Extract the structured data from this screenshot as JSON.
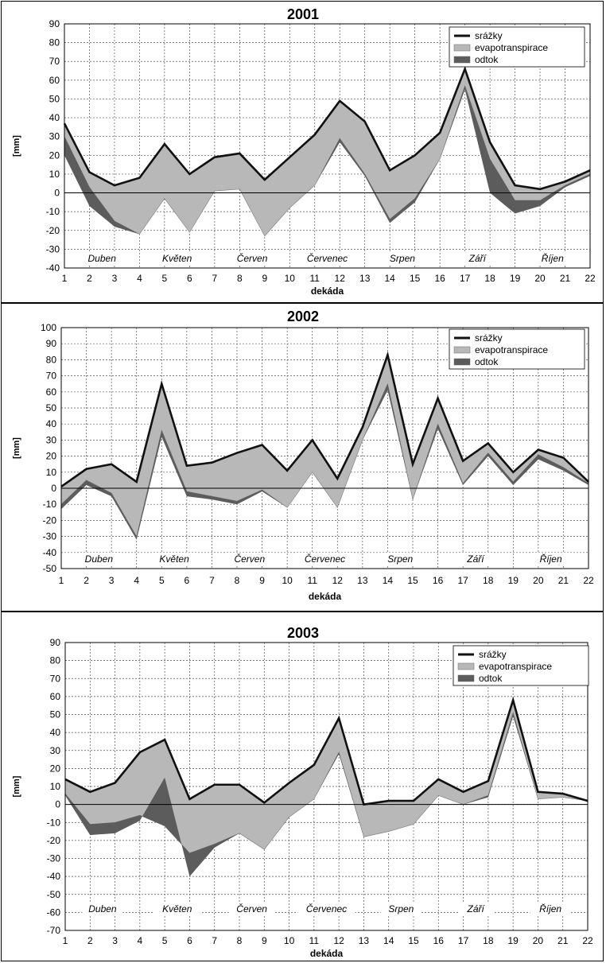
{
  "colors": {
    "srazky": "#111111",
    "evapotranspirace": "#b8b8b8",
    "odtok": "#5c5c5c",
    "grid": "#555555"
  },
  "chart_data": [
    {
      "type": "area",
      "title": "2001",
      "xlabel": "dekáda",
      "ylabel": "[mm]",
      "ylim": [
        -40,
        90
      ],
      "ystep": 10,
      "x": [
        1,
        2,
        3,
        4,
        5,
        6,
        7,
        8,
        9,
        10,
        11,
        12,
        13,
        14,
        15,
        16,
        17,
        18,
        19,
        20,
        21,
        22
      ],
      "months": [
        "Duben",
        "Květen",
        "Červen",
        "Červenec",
        "Srpen",
        "Září",
        "Říjen"
      ],
      "legend": [
        "srážky",
        "evapotranspirace",
        "odtok"
      ],
      "legend_position": "top-right",
      "grid": true,
      "series": [
        {
          "name": "srážky",
          "values": [
            37,
            11,
            4,
            8,
            26,
            10,
            19,
            21,
            7,
            19,
            31,
            49,
            38,
            12,
            20,
            32,
            66,
            27,
            4,
            2,
            6,
            12
          ]
        },
        {
          "name": "evapotranspirace",
          "values": [
            30,
            3,
            -15,
            -22,
            -3,
            -21,
            1,
            2,
            -23,
            -8,
            4,
            29,
            10,
            -14,
            -3,
            18,
            57,
            18,
            -4,
            -4,
            4,
            10
          ]
        },
        {
          "name": "odtok",
          "values": [
            20,
            -7,
            -18,
            -22,
            -3,
            -21,
            1,
            2,
            -23,
            -8,
            4,
            27,
            9,
            -16,
            -5,
            18,
            55,
            0,
            -11,
            -7,
            3,
            9
          ]
        }
      ]
    },
    {
      "type": "area",
      "title": "2002",
      "xlabel": "dekáda",
      "ylabel": "[mm]",
      "ylim": [
        -50,
        100
      ],
      "ystep": 10,
      "x": [
        1,
        2,
        3,
        4,
        5,
        6,
        7,
        8,
        9,
        10,
        11,
        12,
        13,
        14,
        15,
        16,
        17,
        18,
        19,
        20,
        21,
        22
      ],
      "months": [
        "Duben",
        "Květen",
        "Červen",
        "Červenec",
        "Srpen",
        "Září",
        "Říjen"
      ],
      "legend": [
        "srážky",
        "evapotranspirace",
        "odtok"
      ],
      "legend_position": "top-right",
      "grid": true,
      "series": [
        {
          "name": "srážky",
          "values": [
            1,
            12,
            15,
            4,
            65,
            14,
            16,
            22,
            27,
            11,
            30,
            6,
            38,
            83,
            15,
            56,
            17,
            28,
            10,
            24,
            19,
            4
          ]
        },
        {
          "name": "evapotranspirace",
          "values": [
            -10,
            5,
            -3,
            -30,
            36,
            -2,
            -5,
            -8,
            -1,
            -12,
            10,
            -12,
            30,
            65,
            -7,
            40,
            3,
            22,
            4,
            21,
            13,
            3
          ]
        },
        {
          "name": "odtok",
          "values": [
            -13,
            2,
            -5,
            -32,
            32,
            -5,
            -7,
            -10,
            -2,
            -12,
            10,
            -12,
            30,
            61,
            -7,
            37,
            2,
            20,
            2,
            18,
            11,
            2
          ]
        }
      ]
    },
    {
      "type": "area",
      "title": "2003",
      "xlabel": "dekáda",
      "ylabel": "[mm]",
      "ylim": [
        -70,
        90
      ],
      "ystep": 10,
      "x": [
        1,
        2,
        3,
        4,
        5,
        6,
        7,
        8,
        9,
        10,
        11,
        12,
        13,
        14,
        15,
        16,
        17,
        18,
        19,
        20,
        21,
        22
      ],
      "months": [
        "Duben",
        "Květen",
        "Červen",
        "Červenec",
        "Srpen",
        "Září",
        "Říjen"
      ],
      "legend": [
        "srážky",
        "evapotranspirace",
        "odtok"
      ],
      "legend_position": "top-right",
      "grid": true,
      "series": [
        {
          "name": "srážky",
          "values": [
            14,
            7,
            12,
            29,
            36,
            3,
            11,
            11,
            1,
            12,
            22,
            48,
            0,
            2,
            2,
            14,
            7,
            13,
            58,
            7,
            6,
            2
          ]
        },
        {
          "name": "evapotranspirace",
          "values": [
            6,
            -11,
            -10,
            -6,
            -12,
            -27,
            -22,
            -16,
            -25,
            -7,
            3,
            29,
            -18,
            -15,
            -11,
            5,
            0,
            5,
            51,
            3,
            4,
            2
          ]
        },
        {
          "name": "odtok",
          "values": [
            5,
            -17,
            -16,
            -9,
            15,
            -40,
            -24,
            -16,
            -25,
            -7,
            3,
            28,
            -18,
            -15,
            -11,
            5,
            0,
            4,
            49,
            3,
            4,
            2
          ]
        }
      ]
    }
  ]
}
